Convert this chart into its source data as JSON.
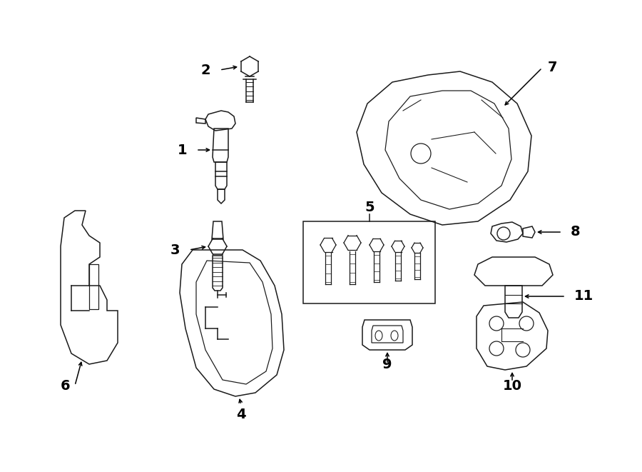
{
  "bg_color": "#ffffff",
  "line_color": "#1a1a1a",
  "lw": 1.1,
  "figsize": [
    9.0,
    6.61
  ],
  "dpi": 100
}
